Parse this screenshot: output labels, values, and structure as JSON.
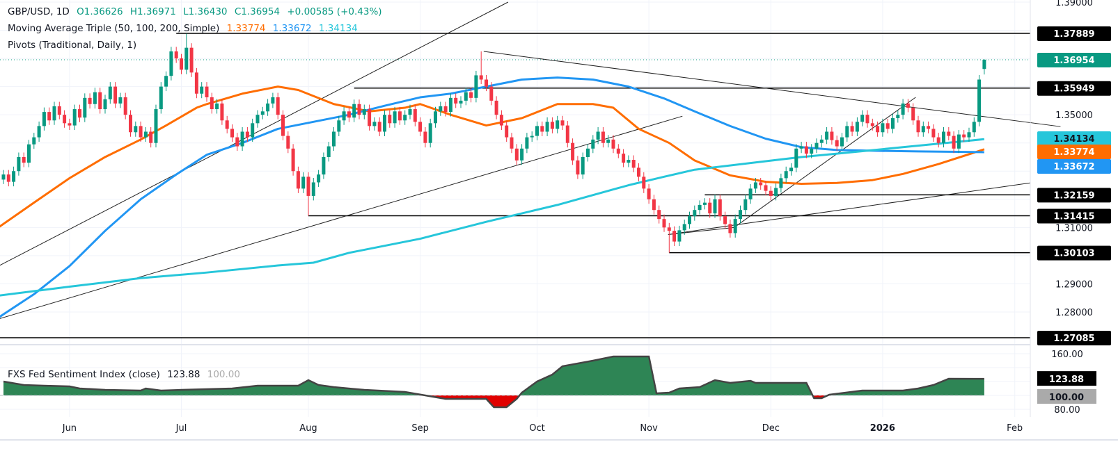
{
  "header": {
    "symbol": "GBP/USD, 1D",
    "open": "O1.36626",
    "high": "H1.36971",
    "low": "L1.36430",
    "close": "C1.36954",
    "change": "+0.00585 (+0.43%)",
    "ma_label": "Moving Average Triple (50, 100, 200, Simple)",
    "ma50_value": "1.33774",
    "ma100_value": "1.33672",
    "ma200_value": "1.34134",
    "pivots_label": "Pivots (Traditional, Daily, 1)"
  },
  "sentiment_legend": {
    "label": "FXS Fed Sentiment Index (close)",
    "value": "123.88",
    "baseline": "100.00"
  },
  "colors": {
    "up": "#089981",
    "down": "#f23645",
    "ma50": "#ff6d00",
    "ma100": "#2196f3",
    "ma200": "#26c6da",
    "sentiment_fill_up": "#2e8555",
    "sentiment_fill_down": "#e00000",
    "pivot_tag": "#000000",
    "price_tag": "#089981",
    "baseline_tag": "#aaaaaa"
  },
  "chart_data": {
    "type": "candlestick",
    "title": "GBP/USD, 1D",
    "ylim": [
      1.268,
      1.39
    ],
    "grid": true,
    "price_axis_ticks": [
      "1.39000",
      "1.35000",
      "1.31000",
      "1.29000",
      "1.28000"
    ],
    "time_axis_ticks": [
      {
        "label": "Jun",
        "bar": 13
      },
      {
        "label": "Jul",
        "bar": 35
      },
      {
        "label": "Aug",
        "bar": 60
      },
      {
        "label": "Sep",
        "bar": 82
      },
      {
        "label": "Oct",
        "bar": 105
      },
      {
        "label": "Nov",
        "bar": 127
      },
      {
        "label": "Dec",
        "bar": 151
      },
      {
        "label": "2026",
        "bar": 173,
        "bold": true
      },
      {
        "label": "Feb",
        "bar": 199
      }
    ],
    "first_open": 1.327,
    "closes": [
      1.3288,
      1.3262,
      1.33,
      1.335,
      1.333,
      1.3395,
      1.342,
      1.346,
      1.351,
      1.348,
      1.353,
      1.35,
      1.347,
      1.3462,
      1.352,
      1.349,
      1.356,
      1.3538,
      1.358,
      1.352,
      1.3555,
      1.36,
      1.354,
      1.3562,
      1.35,
      1.3438,
      1.346,
      1.342,
      1.344,
      1.34,
      1.352,
      1.36,
      1.3638,
      1.3725,
      1.37,
      1.366,
      1.3738,
      1.365,
      1.3575,
      1.36,
      1.3562,
      1.352,
      1.354,
      1.348,
      1.345,
      1.342,
      1.3388,
      1.344,
      1.342,
      1.347,
      1.35,
      1.3512,
      1.354,
      1.3562,
      1.35,
      1.3425,
      1.338,
      1.33,
      1.3238,
      1.328,
      1.3212,
      1.326,
      1.3288,
      1.335,
      1.3388,
      1.344,
      1.348,
      1.3512,
      1.349,
      1.3538,
      1.35,
      1.352,
      1.346,
      1.3475,
      1.344,
      1.35,
      1.347,
      1.3512,
      1.348,
      1.35,
      1.352,
      1.3475,
      1.344,
      1.34,
      1.347,
      1.3512,
      1.353,
      1.351,
      1.356,
      1.354,
      1.355,
      1.358,
      1.356,
      1.364,
      1.3625,
      1.36,
      1.355,
      1.35,
      1.3462,
      1.342,
      1.338,
      1.3338,
      1.338,
      1.342,
      1.3425,
      1.346,
      1.344,
      1.3475,
      1.345,
      1.348,
      1.3462,
      1.34,
      1.3338,
      1.3288,
      1.335,
      1.338,
      1.3412,
      1.344,
      1.34,
      1.3412,
      1.338,
      1.3362,
      1.333,
      1.334,
      1.3312,
      1.328,
      1.3238,
      1.32,
      1.3162,
      1.313,
      1.31,
      1.3088,
      1.305,
      1.309,
      1.3112,
      1.314,
      1.3162,
      1.318,
      1.3188,
      1.315,
      1.32,
      1.314,
      1.3112,
      1.308,
      1.313,
      1.3162,
      1.32,
      1.3238,
      1.326,
      1.325,
      1.323,
      1.3212,
      1.324,
      1.3275,
      1.33,
      1.3312,
      1.338,
      1.3388,
      1.3362,
      1.338,
      1.34,
      1.3412,
      1.344,
      1.341,
      1.3388,
      1.342,
      1.346,
      1.344,
      1.3475,
      1.35,
      1.347,
      1.346,
      1.3438,
      1.347,
      1.345,
      1.3488,
      1.35,
      1.354,
      1.3525,
      1.348,
      1.3438,
      1.346,
      1.345,
      1.342,
      1.34,
      1.344,
      1.3425,
      1.338,
      1.343,
      1.342,
      1.3438,
      1.3475,
      1.3625,
      1.36954
    ],
    "notable_extremes": [
      {
        "bar": 36,
        "high": 1.3788
      },
      {
        "bar": 60,
        "low": 1.31415
      },
      {
        "bar": 94,
        "high": 1.3725
      },
      {
        "bar": 131,
        "low": 1.30103
      },
      {
        "bar": 193,
        "open": 1.36626,
        "high": 1.36971,
        "low": 1.3643,
        "close": 1.36954
      }
    ],
    "moving_averages": [
      {
        "name": "MA 50",
        "value": "1.33774",
        "color_key": "ma50",
        "points": [
          [
            -1,
            1.31
          ],
          [
            6,
            1.3188
          ],
          [
            13,
            1.3275
          ],
          [
            20,
            1.335
          ],
          [
            27,
            1.3412
          ],
          [
            32,
            1.3462
          ],
          [
            38,
            1.3525
          ],
          [
            40,
            1.3538
          ],
          [
            47,
            1.3575
          ],
          [
            54,
            1.36
          ],
          [
            58,
            1.3588
          ],
          [
            65,
            1.3538
          ],
          [
            72,
            1.3512
          ],
          [
            79,
            1.3525
          ],
          [
            82,
            1.3538
          ],
          [
            88,
            1.35
          ],
          [
            95,
            1.3462
          ],
          [
            102,
            1.3488
          ],
          [
            109,
            1.3538
          ],
          [
            116,
            1.3538
          ],
          [
            120,
            1.3525
          ],
          [
            125,
            1.345
          ],
          [
            131,
            1.34
          ],
          [
            136,
            1.3338
          ],
          [
            143,
            1.3285
          ],
          [
            150,
            1.3262
          ],
          [
            157,
            1.3255
          ],
          [
            164,
            1.3258
          ],
          [
            171,
            1.3268
          ],
          [
            177,
            1.329
          ],
          [
            184,
            1.3325
          ],
          [
            193,
            1.33774
          ]
        ]
      },
      {
        "name": "MA 100",
        "value": "1.33672",
        "color_key": "ma100",
        "points": [
          [
            -1,
            1.278
          ],
          [
            6,
            1.2863
          ],
          [
            13,
            1.2963
          ],
          [
            20,
            1.3088
          ],
          [
            27,
            1.32
          ],
          [
            34,
            1.3288
          ],
          [
            40,
            1.3358
          ],
          [
            47,
            1.34
          ],
          [
            54,
            1.345
          ],
          [
            61,
            1.3475
          ],
          [
            68,
            1.35
          ],
          [
            75,
            1.3532
          ],
          [
            82,
            1.3562
          ],
          [
            88,
            1.3575
          ],
          [
            95,
            1.36
          ],
          [
            102,
            1.3625
          ],
          [
            109,
            1.3632
          ],
          [
            116,
            1.3625
          ],
          [
            123,
            1.36
          ],
          [
            130,
            1.3558
          ],
          [
            136,
            1.3512
          ],
          [
            143,
            1.346
          ],
          [
            150,
            1.3415
          ],
          [
            157,
            1.3385
          ],
          [
            164,
            1.3375
          ],
          [
            172,
            1.3372
          ],
          [
            180,
            1.337
          ],
          [
            193,
            1.33672
          ]
        ]
      },
      {
        "name": "MA 200",
        "value": "1.34134",
        "color_key": "ma200",
        "points": [
          [
            -1,
            1.2858
          ],
          [
            13,
            1.289
          ],
          [
            27,
            1.292
          ],
          [
            40,
            1.294
          ],
          [
            54,
            1.2965
          ],
          [
            61,
            1.2975
          ],
          [
            68,
            1.301
          ],
          [
            82,
            1.306
          ],
          [
            95,
            1.312
          ],
          [
            109,
            1.318
          ],
          [
            123,
            1.325
          ],
          [
            130,
            1.328
          ],
          [
            136,
            1.3305
          ],
          [
            150,
            1.3335
          ],
          [
            157,
            1.335
          ],
          [
            164,
            1.3362
          ],
          [
            177,
            1.3385
          ],
          [
            193,
            1.34134
          ]
        ]
      }
    ],
    "pivot_levels": [
      {
        "value": 1.37889,
        "label": "1.37889",
        "from_bar": 34
      },
      {
        "value": 1.35949,
        "label": "1.35949",
        "from_bar": 69
      },
      {
        "value": 1.32159,
        "label": "1.32159",
        "from_bar": 138
      },
      {
        "value": 1.31415,
        "label": "1.31415",
        "from_bar": 60
      },
      {
        "value": 1.30103,
        "label": "1.30103",
        "from_bar": 131
      },
      {
        "value": 1.27085,
        "label": "1.27085",
        "from_bar": -1
      }
    ],
    "last_price": {
      "value": 1.36954,
      "label": "1.36954"
    },
    "trendlines": [
      [
        [
          -1,
          1.2963
        ],
        [
          99.3,
          1.39
        ]
      ],
      [
        [
          -1,
          1.2775
        ],
        [
          133.6,
          1.3495
        ]
      ],
      [
        [
          94.5,
          1.3725
        ],
        [
          208,
          1.3458
        ]
      ],
      [
        [
          130.8,
          1.3075
        ],
        [
          202,
          1.3258
        ]
      ],
      [
        [
          143.8,
          1.31
        ],
        [
          179.5,
          1.3562
        ]
      ],
      [
        [
          130.8,
          1.3075
        ],
        [
          143.8,
          1.31
        ]
      ]
    ],
    "sentiment": {
      "name": "FXS Fed Sentiment Index (close)",
      "baseline": 100,
      "last": 123.88,
      "ylim": [
        78,
        162
      ],
      "axis_ticks": [
        "160.00",
        "80.00"
      ],
      "points": [
        [
          0,
          120
        ],
        [
          4,
          115
        ],
        [
          8,
          114
        ],
        [
          13,
          113
        ],
        [
          15,
          110
        ],
        [
          20,
          108
        ],
        [
          27,
          107
        ],
        [
          28,
          110
        ],
        [
          31,
          107
        ],
        [
          35,
          108
        ],
        [
          45,
          110
        ],
        [
          50,
          114
        ],
        [
          58,
          114
        ],
        [
          60,
          122
        ],
        [
          62,
          115
        ],
        [
          65,
          112
        ],
        [
          71,
          108
        ],
        [
          79,
          105
        ],
        [
          83,
          100
        ],
        [
          87,
          95
        ],
        [
          95,
          95
        ],
        [
          96.5,
          83
        ],
        [
          99,
          83
        ],
        [
          101,
          95
        ],
        [
          102,
          104
        ],
        [
          105,
          120
        ],
        [
          108,
          130
        ],
        [
          110,
          142
        ],
        [
          116,
          150
        ],
        [
          120,
          156
        ],
        [
          127,
          156
        ],
        [
          128.5,
          103
        ],
        [
          131,
          104
        ],
        [
          133,
          110
        ],
        [
          137,
          112
        ],
        [
          140,
          122
        ],
        [
          143,
          118
        ],
        [
          147,
          121
        ],
        [
          148,
          118
        ],
        [
          158,
          118
        ],
        [
          159.5,
          96
        ],
        [
          161,
          96
        ],
        [
          162.5,
          101
        ],
        [
          169,
          107
        ],
        [
          177,
          107
        ],
        [
          180,
          110
        ],
        [
          183,
          115
        ],
        [
          186,
          124
        ],
        [
          193,
          123.88
        ]
      ]
    }
  }
}
